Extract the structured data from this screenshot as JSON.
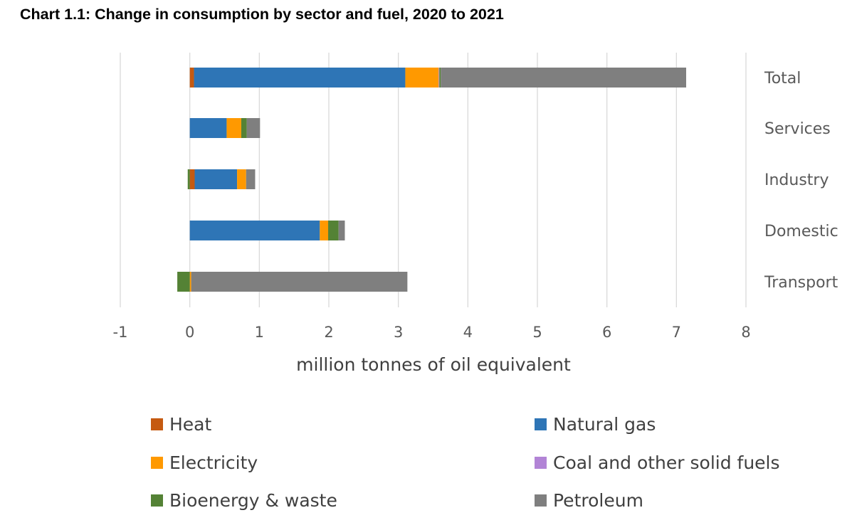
{
  "chart_data": {
    "type": "bar",
    "orientation": "horizontal",
    "stacked": true,
    "title": "Chart 1.1: Change in consumption by sector and fuel, 2020 to 2021",
    "xlabel": "million tonnes of oil equivalent",
    "ylabel": "",
    "xlim": [
      -1,
      8
    ],
    "xticks": [
      "-1",
      "0",
      "1",
      "2",
      "3",
      "4",
      "5",
      "6",
      "7",
      "8"
    ],
    "grid": true,
    "legend_position": "bottom",
    "categories": [
      "Total",
      "Services",
      "Industry",
      "Domestic",
      "Transport"
    ],
    "series": [
      {
        "name": "Heat",
        "color": "#C55A11",
        "values": [
          0.06,
          0.0,
          0.07,
          0.0,
          0.0
        ]
      },
      {
        "name": "Natural gas",
        "color": "#2E75B6",
        "values": [
          3.04,
          0.53,
          0.61,
          1.87,
          0.0
        ]
      },
      {
        "name": "Electricity",
        "color": "#FF9900",
        "values": [
          0.48,
          0.21,
          0.13,
          0.12,
          0.02
        ]
      },
      {
        "name": "Coal and other solid fuels",
        "color": "#B284D6",
        "values": [
          0.01,
          0.0,
          0.0,
          0.0,
          0.0
        ]
      },
      {
        "name": "Bioenergy & waste",
        "color": "#548235",
        "values": [
          0.02,
          0.08,
          -0.03,
          0.15,
          -0.18
        ]
      },
      {
        "name": "Petroleum",
        "color": "#7F7F7F",
        "values": [
          3.53,
          0.19,
          0.13,
          0.09,
          3.11
        ]
      }
    ]
  }
}
